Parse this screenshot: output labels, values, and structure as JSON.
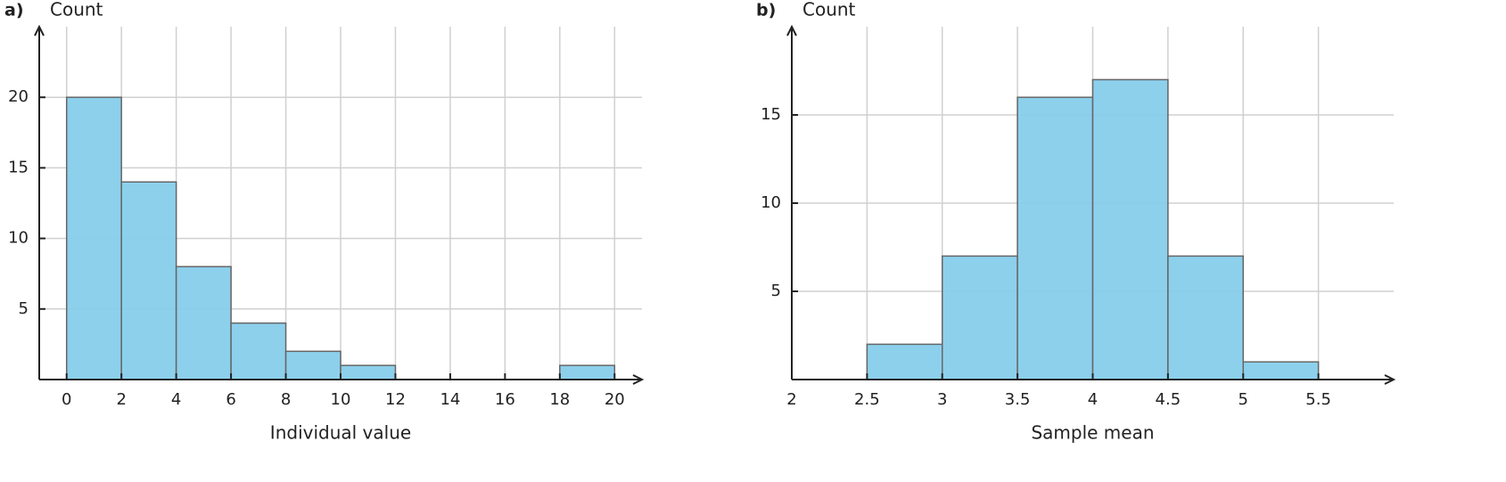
{
  "chart_data": [
    {
      "type": "histogram",
      "panel": "a)",
      "ylabel": "Count",
      "xlabel": "Individual value",
      "bins": [
        0,
        2,
        4,
        6,
        8,
        10,
        12,
        14,
        16,
        18,
        20
      ],
      "values": [
        20,
        14,
        8,
        4,
        2,
        1,
        0,
        0,
        0,
        1
      ],
      "color": "#87ceeb",
      "xlim": [
        -1,
        21
      ],
      "ylim": [
        0,
        25
      ],
      "xticks": [
        0,
        2,
        4,
        6,
        8,
        10,
        12,
        14,
        16,
        18,
        20
      ],
      "yticks": [
        5,
        10,
        15,
        20
      ],
      "grid": true
    },
    {
      "type": "histogram",
      "panel": "b)",
      "ylabel": "Count",
      "xlabel": "Sample mean",
      "bins": [
        2.5,
        3,
        3.5,
        4,
        4.5,
        5,
        5.5
      ],
      "values": [
        2,
        7,
        16,
        17,
        7,
        1
      ],
      "color": "#87ceeb",
      "xlim": [
        2,
        6
      ],
      "ylim": [
        0,
        20
      ],
      "xticks": [
        2,
        2.5,
        3,
        3.5,
        4,
        4.5,
        5,
        5.5
      ],
      "yticks": [
        5,
        10,
        15
      ],
      "grid": true
    }
  ]
}
